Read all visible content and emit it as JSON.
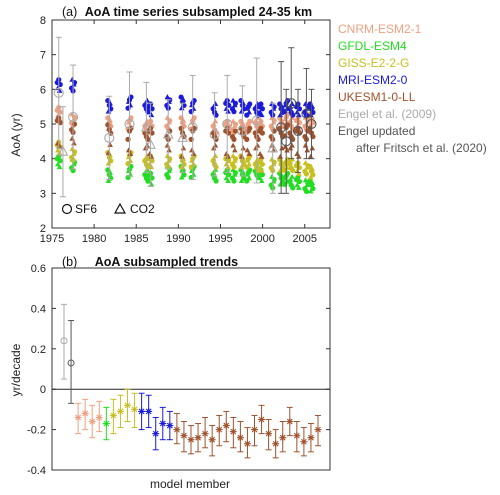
{
  "colors": {
    "CNRM-ESM2-1": "#f0a080",
    "GFDL-ESM4": "#22dd22",
    "GISS-E2-2-G": "#c8c020",
    "MRI-ESM2-0": "#1a1adc",
    "UKESM1-0-LL": "#a0522d",
    "Engel et al. (2009)": "#aaaaaa",
    "Engel updated after Fritsch et al. (2020)": "#555555"
  },
  "legend": {
    "position": "right",
    "entries": [
      {
        "name": "CNRM-ESM2-1",
        "color": "#f0a080"
      },
      {
        "name": "GFDL-ESM4",
        "color": "#22dd22"
      },
      {
        "name": "GISS-E2-2-G",
        "color": "#c8c020"
      },
      {
        "name": "MRI-ESM2-0",
        "color": "#1a1adc"
      },
      {
        "name": "UKESM1-0-LL",
        "color": "#a0522d"
      },
      {
        "name": "Engel et al. (2009)",
        "color": "#aaaaaa"
      },
      {
        "name": "Engel updated",
        "color": "#555555"
      },
      {
        "name": "after Fritsch et al. (2020)",
        "color": "#555555"
      }
    ],
    "markers": [
      {
        "symbol": "circle-icon",
        "label": "SF6"
      },
      {
        "symbol": "triangle-icon",
        "label": "CO2"
      }
    ]
  },
  "chart_data": [
    {
      "type": "scatter",
      "panel": "(a)",
      "title": "AoA time series subsampled 24-35 km",
      "xlabel": "",
      "ylabel": "AoA (yr)",
      "xlim": [
        1975,
        2008
      ],
      "ylim": [
        2,
        8
      ],
      "xticks": [
        1975,
        1980,
        1985,
        1990,
        1995,
        2000,
        2005
      ],
      "yticks": [
        2,
        3,
        4,
        5,
        6,
        7,
        8
      ],
      "grid": false,
      "obs_years": [
        1975.8,
        1977.5,
        1981.8,
        1984.2,
        1986.2,
        1986.7,
        1988.8,
        1990.5,
        1991.7,
        1994.3,
        1995.8,
        1996.6,
        1997.6,
        1998.3,
        1999.3,
        1999.8,
        2001.2,
        2002.2,
        2002.8,
        2003.4,
        2004.2,
        2005.2,
        2005.8
      ],
      "model_series": [
        {
          "name": "CNRM-ESM2-1",
          "offset": 0.18,
          "values": [
            5.3,
            5.1,
            5.0,
            5.0,
            4.9,
            4.9,
            5.0,
            5.0,
            5.0,
            4.9,
            4.9,
            4.9,
            4.9,
            4.9,
            5.0,
            4.9,
            5.0,
            5.0,
            5.1,
            5.0,
            5.0,
            5.0,
            5.1
          ]
        },
        {
          "name": "GFDL-ESM4",
          "offset": -0.12,
          "values": [
            3.9,
            3.8,
            3.5,
            3.6,
            3.5,
            3.4,
            3.6,
            3.6,
            3.6,
            3.5,
            3.5,
            3.5,
            3.5,
            3.5,
            3.6,
            3.5,
            3.3,
            3.4,
            3.4,
            3.3,
            3.3,
            3.2,
            3.2
          ]
        },
        {
          "name": "GISS-E2-2-G",
          "offset": 0.0,
          "values": [
            4.3,
            4.1,
            4.0,
            4.0,
            3.9,
            3.9,
            3.9,
            3.9,
            3.9,
            3.9,
            3.9,
            3.9,
            3.9,
            3.9,
            3.8,
            3.8,
            3.8,
            3.8,
            3.8,
            3.8,
            3.7,
            3.7,
            3.6
          ]
        },
        {
          "name": "MRI-ESM2-0",
          "offset": 0.32,
          "values": [
            6.1,
            6.1,
            5.5,
            5.6,
            5.5,
            5.4,
            5.6,
            5.6,
            5.5,
            5.4,
            5.5,
            5.5,
            5.5,
            5.4,
            5.4,
            5.4,
            5.4,
            5.4,
            5.5,
            5.4,
            5.4,
            5.4,
            5.4
          ]
        },
        {
          "name": "UKESM1-0-LL",
          "offset": 0.0,
          "values": [
            4.8,
            4.7,
            4.6,
            4.5,
            4.5,
            4.5,
            4.5,
            4.5,
            4.5,
            4.5,
            4.5,
            4.5,
            4.5,
            4.5,
            4.5,
            4.5,
            4.5,
            4.5,
            4.6,
            4.5,
            4.5,
            4.5,
            4.5
          ]
        }
      ],
      "observations": [
        {
          "year": 1975.8,
          "value": 5.9,
          "err": 1.6,
          "tracer": "SF6",
          "source": "Engel et al. (2009)"
        },
        {
          "year": 1976.3,
          "value": 4.2,
          "err": 1.3,
          "tracer": "CO2",
          "source": "Engel et al. (2009)"
        },
        {
          "year": 1977.5,
          "value": 5.2,
          "err": 1.5,
          "tracer": "SF6",
          "source": "Engel et al. (2009)"
        },
        {
          "year": 1981.8,
          "value": 4.6,
          "err": 1.2,
          "tracer": "SF6",
          "source": "Engel et al. (2009)"
        },
        {
          "year": 1984.2,
          "value": 5.0,
          "err": 1.5,
          "tracer": "SF6",
          "source": "Engel et al. (2009)"
        },
        {
          "year": 1986.2,
          "value": 4.9,
          "err": 1.3,
          "tracer": "CO2",
          "source": "Engel et al. (2009)"
        },
        {
          "year": 1986.7,
          "value": 4.4,
          "err": 1.2,
          "tracer": "CO2",
          "source": "Engel et al. (2009)"
        },
        {
          "year": 1988.8,
          "value": 4.7,
          "err": 1.0,
          "tracer": "CO2",
          "source": "Engel et al. (2009)"
        },
        {
          "year": 1990.5,
          "value": 4.6,
          "err": 1.0,
          "tracer": "CO2",
          "source": "Engel et al. (2009)"
        },
        {
          "year": 1991.7,
          "value": 4.9,
          "err": 1.5,
          "tracer": "SF6",
          "source": "Engel et al. (2009)"
        },
        {
          "year": 1994.3,
          "value": 4.7,
          "err": 1.2,
          "tracer": "SF6",
          "source": "Engel et al. (2009)"
        },
        {
          "year": 1995.8,
          "value": 5.0,
          "err": 1.4,
          "tracer": "SF6",
          "source": "Engel et al. (2009)"
        },
        {
          "year": 1997.6,
          "value": 4.8,
          "err": 1.3,
          "tracer": "SF6",
          "source": "Engel et al. (2009)"
        },
        {
          "year": 1999.3,
          "value": 5.1,
          "err": 1.8,
          "tracer": "SF6",
          "source": "Engel et al. (2009)"
        },
        {
          "year": 2001.2,
          "value": 4.3,
          "err": 1.3,
          "tracer": "CO2",
          "source": "Engel et al. (2009)"
        },
        {
          "year": 2002.2,
          "value": 4.9,
          "err": 1.9,
          "tracer": "SF6",
          "source": "Engel updated after Fritsch et al. (2020)"
        },
        {
          "year": 2002.8,
          "value": 4.5,
          "err": 1.5,
          "tracer": "SF6",
          "source": "Engel updated after Fritsch et al. (2020)"
        },
        {
          "year": 2003.4,
          "value": 5.6,
          "err": 1.6,
          "tracer": "SF6",
          "source": "Engel updated after Fritsch et al. (2020)"
        },
        {
          "year": 2004.2,
          "value": 4.8,
          "err": 1.2,
          "tracer": "SF6",
          "source": "Engel updated after Fritsch et al. (2020)"
        },
        {
          "year": 2005.2,
          "value": 5.3,
          "err": 1.3,
          "tracer": "SF6",
          "source": "Engel updated after Fritsch et al. (2020)"
        },
        {
          "year": 2005.8,
          "value": 5.0,
          "err": 1.0,
          "tracer": "SF6",
          "source": "Engel updated after Fritsch et al. (2020)"
        }
      ]
    },
    {
      "type": "scatter",
      "panel": "(b)",
      "title": "AoA subsampled trends",
      "xlabel": "model member",
      "ylabel": "yr/decade",
      "ylim": [
        -0.4,
        0.6
      ],
      "yticks": [
        -0.4,
        -0.2,
        0,
        0.2,
        0.4,
        0.6
      ],
      "grid": false,
      "zero_line": true,
      "trends": [
        {
          "source": "Engel et al. (2009)",
          "value": 0.24,
          "low": 0.05,
          "high": 0.42,
          "marker": "circle"
        },
        {
          "source": "Engel updated after Fritsch et al. (2020)",
          "value": 0.13,
          "low": -0.07,
          "high": 0.34,
          "marker": "circle"
        },
        {
          "source": "CNRM-ESM2-1",
          "value": -0.14,
          "low": -0.22,
          "high": -0.07,
          "marker": "star"
        },
        {
          "source": "CNRM-ESM2-1",
          "value": -0.12,
          "low": -0.2,
          "high": -0.05,
          "marker": "star"
        },
        {
          "source": "CNRM-ESM2-1",
          "value": -0.16,
          "low": -0.24,
          "high": -0.08,
          "marker": "star"
        },
        {
          "source": "CNRM-ESM2-1",
          "value": -0.14,
          "low": -0.21,
          "high": -0.06,
          "marker": "star"
        },
        {
          "source": "GFDL-ESM4",
          "value": -0.17,
          "low": -0.25,
          "high": -0.09,
          "marker": "star"
        },
        {
          "source": "GISS-E2-2-G",
          "value": -0.13,
          "low": -0.22,
          "high": -0.05,
          "marker": "star"
        },
        {
          "source": "GISS-E2-2-G",
          "value": -0.11,
          "low": -0.19,
          "high": -0.03,
          "marker": "star"
        },
        {
          "source": "GISS-E2-2-G",
          "value": -0.08,
          "low": -0.16,
          "high": 0.0,
          "marker": "star"
        },
        {
          "source": "GISS-E2-2-G",
          "value": -0.1,
          "low": -0.19,
          "high": -0.02,
          "marker": "star"
        },
        {
          "source": "MRI-ESM2-0",
          "value": -0.11,
          "low": -0.2,
          "high": -0.02,
          "marker": "star"
        },
        {
          "source": "MRI-ESM2-0",
          "value": -0.11,
          "low": -0.19,
          "high": -0.03,
          "marker": "star"
        },
        {
          "source": "MRI-ESM2-0",
          "value": -0.22,
          "low": -0.3,
          "high": -0.14,
          "marker": "star"
        },
        {
          "source": "MRI-ESM2-0",
          "value": -0.17,
          "low": -0.25,
          "high": -0.09,
          "marker": "star"
        },
        {
          "source": "MRI-ESM2-0",
          "value": -0.18,
          "low": -0.25,
          "high": -0.11,
          "marker": "star"
        },
        {
          "source": "UKESM1-0-LL",
          "value": -0.2,
          "low": -0.27,
          "high": -0.12,
          "marker": "star"
        },
        {
          "source": "UKESM1-0-LL",
          "value": -0.23,
          "low": -0.31,
          "high": -0.16,
          "marker": "star"
        },
        {
          "source": "UKESM1-0-LL",
          "value": -0.25,
          "low": -0.32,
          "high": -0.18,
          "marker": "star"
        },
        {
          "source": "UKESM1-0-LL",
          "value": -0.24,
          "low": -0.31,
          "high": -0.17,
          "marker": "star"
        },
        {
          "source": "UKESM1-0-LL",
          "value": -0.22,
          "low": -0.29,
          "high": -0.14,
          "marker": "star"
        },
        {
          "source": "UKESM1-0-LL",
          "value": -0.25,
          "low": -0.33,
          "high": -0.18,
          "marker": "star"
        },
        {
          "source": "UKESM1-0-LL",
          "value": -0.2,
          "low": -0.28,
          "high": -0.13,
          "marker": "star"
        },
        {
          "source": "UKESM1-0-LL",
          "value": -0.18,
          "low": -0.26,
          "high": -0.11,
          "marker": "star"
        },
        {
          "source": "UKESM1-0-LL",
          "value": -0.21,
          "low": -0.29,
          "high": -0.14,
          "marker": "star"
        },
        {
          "source": "UKESM1-0-LL",
          "value": -0.24,
          "low": -0.31,
          "high": -0.16,
          "marker": "star"
        },
        {
          "source": "UKESM1-0-LL",
          "value": -0.27,
          "low": -0.34,
          "high": -0.19,
          "marker": "star"
        },
        {
          "source": "UKESM1-0-LL",
          "value": -0.2,
          "low": -0.28,
          "high": -0.13,
          "marker": "star"
        },
        {
          "source": "UKESM1-0-LL",
          "value": -0.15,
          "low": -0.22,
          "high": -0.08,
          "marker": "star"
        },
        {
          "source": "UKESM1-0-LL",
          "value": -0.22,
          "low": -0.3,
          "high": -0.15,
          "marker": "star"
        },
        {
          "source": "UKESM1-0-LL",
          "value": -0.27,
          "low": -0.34,
          "high": -0.2,
          "marker": "star"
        },
        {
          "source": "UKESM1-0-LL",
          "value": -0.24,
          "low": -0.31,
          "high": -0.16,
          "marker": "star"
        },
        {
          "source": "UKESM1-0-LL",
          "value": -0.16,
          "low": -0.23,
          "high": -0.09,
          "marker": "star"
        },
        {
          "source": "UKESM1-0-LL",
          "value": -0.23,
          "low": -0.31,
          "high": -0.16,
          "marker": "star"
        },
        {
          "source": "UKESM1-0-LL",
          "value": -0.26,
          "low": -0.33,
          "high": -0.19,
          "marker": "star"
        },
        {
          "source": "UKESM1-0-LL",
          "value": -0.24,
          "low": -0.31,
          "high": -0.17,
          "marker": "star"
        },
        {
          "source": "UKESM1-0-LL",
          "value": -0.2,
          "low": -0.28,
          "high": -0.13,
          "marker": "star"
        }
      ]
    }
  ]
}
